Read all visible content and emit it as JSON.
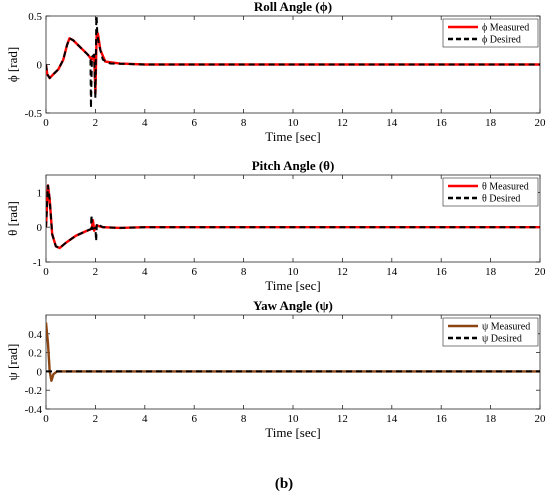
{
  "caption": "(b)",
  "chart_data": [
    {
      "type": "line",
      "title": "Roll Angle (ϕ)",
      "xlabel": "Time [sec]",
      "ylabel": "ϕ [rad]",
      "xlim": [
        0,
        20
      ],
      "ylim": [
        -0.5,
        0.5
      ],
      "xticks": [
        "0",
        "2",
        "4",
        "6",
        "8",
        "10",
        "12",
        "14",
        "16",
        "18",
        "20"
      ],
      "yticks": [
        "-0.5",
        "0",
        "0.5"
      ],
      "ytick_values": [
        -0.5,
        0,
        0.5
      ],
      "legend_position": "top-right",
      "series": [
        {
          "name": "ϕ Measured",
          "color": "#ff0000",
          "style": "solid",
          "points": [
            [
              0,
              0
            ],
            [
              0.05,
              -0.1
            ],
            [
              0.15,
              -0.14
            ],
            [
              0.3,
              -0.1
            ],
            [
              0.5,
              -0.05
            ],
            [
              0.7,
              0.05
            ],
            [
              0.85,
              0.2
            ],
            [
              0.95,
              0.27
            ],
            [
              1.1,
              0.25
            ],
            [
              1.3,
              0.2
            ],
            [
              1.5,
              0.15
            ],
            [
              1.7,
              0.1
            ],
            [
              1.85,
              0.05
            ],
            [
              1.95,
              0.1
            ],
            [
              2.0,
              -0.3
            ],
            [
              2.05,
              0.3
            ],
            [
              2.1,
              0.32
            ],
            [
              2.2,
              0.15
            ],
            [
              2.4,
              0.03
            ],
            [
              3,
              0.01
            ],
            [
              4,
              0
            ],
            [
              20,
              0
            ]
          ]
        },
        {
          "name": "ϕ Desired",
          "color": "#000000",
          "style": "dashed",
          "points": [
            [
              0,
              0
            ],
            [
              0.05,
              -0.1
            ],
            [
              0.15,
              -0.14
            ],
            [
              0.3,
              -0.1
            ],
            [
              0.5,
              -0.05
            ],
            [
              0.7,
              0.05
            ],
            [
              0.85,
              0.2
            ],
            [
              0.95,
              0.27
            ],
            [
              1.1,
              0.25
            ],
            [
              1.3,
              0.2
            ],
            [
              1.5,
              0.15
            ],
            [
              1.7,
              0.1
            ],
            [
              1.8,
              0.05
            ],
            [
              1.82,
              -0.45
            ],
            [
              1.86,
              0.08
            ],
            [
              1.95,
              0.1
            ],
            [
              2.0,
              -0.35
            ],
            [
              2.04,
              0.55
            ],
            [
              2.08,
              0.3
            ],
            [
              2.15,
              0.2
            ],
            [
              2.3,
              0.05
            ],
            [
              2.6,
              0.01
            ],
            [
              4,
              0
            ],
            [
              20,
              0
            ]
          ]
        }
      ]
    },
    {
      "type": "line",
      "title": "Pitch Angle (θ)",
      "xlabel": "Time [sec]",
      "ylabel": "θ [rad]",
      "xlim": [
        0,
        20
      ],
      "ylim": [
        -1,
        1.5
      ],
      "xticks": [
        "0",
        "2",
        "4",
        "6",
        "8",
        "10",
        "12",
        "14",
        "16",
        "18",
        "20"
      ],
      "yticks": [
        "-1",
        "0",
        "1"
      ],
      "ytick_values": [
        -1,
        0,
        1
      ],
      "legend_position": "top-right",
      "series": [
        {
          "name": "θ Measured",
          "color": "#ff0000",
          "style": "solid",
          "points": [
            [
              0,
              0
            ],
            [
              0.08,
              1.2
            ],
            [
              0.15,
              0.8
            ],
            [
              0.25,
              -0.2
            ],
            [
              0.4,
              -0.55
            ],
            [
              0.55,
              -0.6
            ],
            [
              0.8,
              -0.45
            ],
            [
              1.2,
              -0.25
            ],
            [
              1.6,
              -0.12
            ],
            [
              1.85,
              -0.05
            ],
            [
              1.9,
              0.2
            ],
            [
              1.95,
              -0.1
            ],
            [
              2.05,
              0.05
            ],
            [
              2.3,
              0.0
            ],
            [
              3,
              -0.02
            ],
            [
              4,
              0
            ],
            [
              20,
              0
            ]
          ]
        },
        {
          "name": "θ Desired",
          "color": "#000000",
          "style": "dashed",
          "points": [
            [
              0,
              0
            ],
            [
              0.08,
              1.2
            ],
            [
              0.15,
              0.8
            ],
            [
              0.25,
              -0.2
            ],
            [
              0.4,
              -0.55
            ],
            [
              0.55,
              -0.6
            ],
            [
              0.8,
              -0.45
            ],
            [
              1.2,
              -0.25
            ],
            [
              1.6,
              -0.12
            ],
            [
              1.82,
              -0.05
            ],
            [
              1.84,
              0.35
            ],
            [
              1.87,
              -0.05
            ],
            [
              2.0,
              -0.02
            ],
            [
              2.03,
              -0.4
            ],
            [
              2.06,
              0.1
            ],
            [
              2.3,
              0.0
            ],
            [
              3,
              -0.02
            ],
            [
              4,
              0
            ],
            [
              20,
              0
            ]
          ]
        }
      ]
    },
    {
      "type": "line",
      "title": "Yaw Angle (ψ)",
      "xlabel": "Time [sec]",
      "ylabel": "ψ [rad]",
      "xlim": [
        0,
        20
      ],
      "ylim": [
        -0.4,
        0.6
      ],
      "xticks": [
        "0",
        "2",
        "4",
        "6",
        "8",
        "10",
        "12",
        "14",
        "16",
        "18",
        "20"
      ],
      "yticks": [
        "-0.4",
        "-0.2",
        "0",
        "0.2",
        "0.4"
      ],
      "ytick_values": [
        -0.4,
        -0.2,
        0,
        0.2,
        0.4
      ],
      "legend_position": "top-right",
      "series": [
        {
          "name": "ψ Measured",
          "color": "#8b4513",
          "style": "solid",
          "points": [
            [
              0,
              0.52
            ],
            [
              0.08,
              0.3
            ],
            [
              0.15,
              0.0
            ],
            [
              0.22,
              -0.1
            ],
            [
              0.3,
              -0.03
            ],
            [
              0.45,
              0.0
            ],
            [
              20,
              0
            ]
          ]
        },
        {
          "name": "ψ Desired",
          "color": "#000000",
          "style": "dashed",
          "points": [
            [
              0,
              0
            ],
            [
              20,
              0
            ]
          ]
        }
      ]
    }
  ]
}
